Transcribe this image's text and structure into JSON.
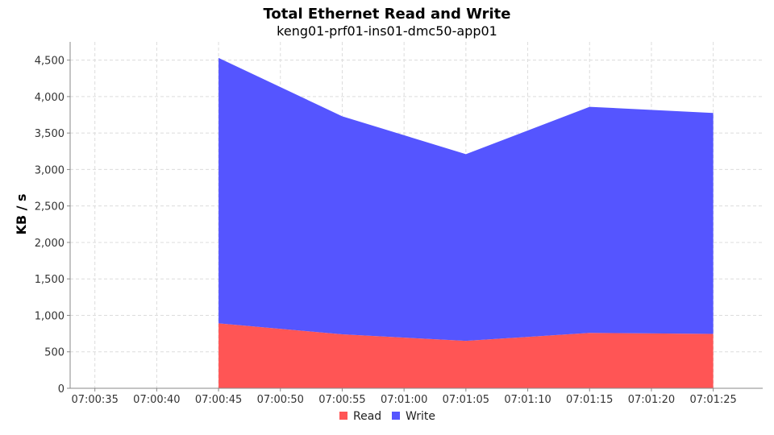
{
  "chart_data": {
    "type": "area",
    "stacked": true,
    "title": "Total Ethernet Read and Write",
    "subtitle": "keng01-prf01-ins01-dmc50-app01",
    "xlabel": "",
    "ylabel": "KB / s",
    "ylim": [
      0,
      4750
    ],
    "yticks": [
      0,
      500,
      1000,
      1500,
      2000,
      2500,
      3000,
      3500,
      4000,
      4500
    ],
    "ytick_labels": [
      "0",
      "500",
      "1,000",
      "1,500",
      "2,000",
      "2,500",
      "3,000",
      "3,500",
      "4,000",
      "4,500"
    ],
    "xlim": [
      "07:00:33",
      "07:01:29"
    ],
    "xticks": [
      "07:00:35",
      "07:00:40",
      "07:00:45",
      "07:00:50",
      "07:00:55",
      "07:01:00",
      "07:01:05",
      "07:01:10",
      "07:01:15",
      "07:01:20",
      "07:01:25"
    ],
    "x": [
      "07:00:45",
      "07:00:55",
      "07:01:05",
      "07:01:15",
      "07:01:25"
    ],
    "series": [
      {
        "name": "Read",
        "color": "#ff5555",
        "values": [
          890,
          740,
          650,
          760,
          745
        ]
      },
      {
        "name": "Write",
        "color": "#5555ff",
        "values": [
          3640,
          2990,
          2560,
          3100,
          3030
        ]
      }
    ],
    "grid": true,
    "legend_position": "bottom-center"
  }
}
